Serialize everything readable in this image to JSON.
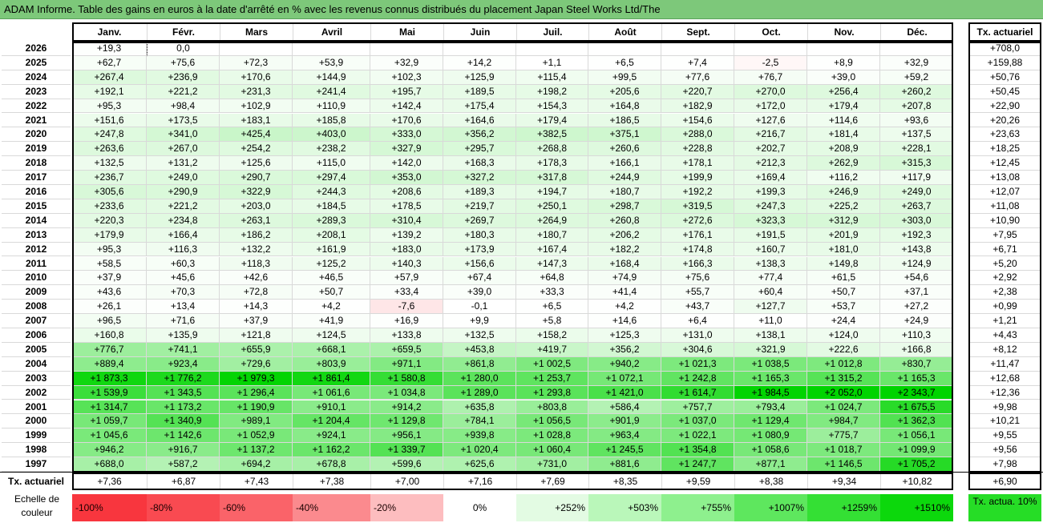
{
  "title": "ADAM Informe. Table des gains en euros à la date d'arrêté en % avec les revenus connus distribués du placement Japan Steel Works Ltd/The",
  "months": [
    "Janv.",
    "Févr.",
    "Mars",
    "Avril",
    "Mai",
    "Juin",
    "Juil.",
    "Août",
    "Sept.",
    "Oct.",
    "Nov.",
    "Déc."
  ],
  "tx_header": "Tx. actuariel",
  "rows": [
    {
      "year": "2026",
      "cells": [
        "+19,3",
        "0,0",
        "",
        "",
        "",
        "",
        "",
        "",
        "",
        "",
        "",
        ""
      ],
      "tx": "+708,0"
    },
    {
      "year": "2025",
      "cells": [
        "+62,7",
        "+75,6",
        "+72,3",
        "+53,9",
        "+32,9",
        "+14,2",
        "+1,1",
        "+6,5",
        "+7,4",
        "-2,5",
        "+8,9",
        "+32,9"
      ],
      "tx": "+159,88"
    },
    {
      "year": "2024",
      "cells": [
        "+267,4",
        "+236,9",
        "+170,6",
        "+144,9",
        "+102,3",
        "+125,9",
        "+115,4",
        "+99,5",
        "+77,6",
        "+76,7",
        "+39,0",
        "+59,2"
      ],
      "tx": "+50,76"
    },
    {
      "year": "2023",
      "cells": [
        "+192,1",
        "+221,2",
        "+231,3",
        "+241,4",
        "+195,7",
        "+189,5",
        "+198,2",
        "+205,6",
        "+220,7",
        "+270,0",
        "+256,4",
        "+260,2"
      ],
      "tx": "+50,45"
    },
    {
      "year": "2022",
      "cells": [
        "+95,3",
        "+98,4",
        "+102,9",
        "+110,9",
        "+142,4",
        "+175,4",
        "+154,3",
        "+164,8",
        "+182,9",
        "+172,0",
        "+179,4",
        "+207,8"
      ],
      "tx": "+22,90"
    },
    {
      "year": "2021",
      "cells": [
        "+151,6",
        "+173,5",
        "+183,1",
        "+185,8",
        "+170,6",
        "+164,6",
        "+179,4",
        "+186,5",
        "+154,6",
        "+127,6",
        "+114,6",
        "+93,6"
      ],
      "tx": "+20,26"
    },
    {
      "year": "2020",
      "cells": [
        "+247,8",
        "+341,0",
        "+425,4",
        "+403,0",
        "+333,0",
        "+356,2",
        "+382,5",
        "+375,1",
        "+288,0",
        "+216,7",
        "+181,4",
        "+137,5"
      ],
      "tx": "+23,63"
    },
    {
      "year": "2019",
      "cells": [
        "+263,6",
        "+267,0",
        "+254,2",
        "+238,2",
        "+327,9",
        "+295,7",
        "+268,8",
        "+260,6",
        "+228,8",
        "+202,7",
        "+208,9",
        "+228,1"
      ],
      "tx": "+18,25"
    },
    {
      "year": "2018",
      "cells": [
        "+132,5",
        "+131,2",
        "+125,6",
        "+115,0",
        "+142,0",
        "+168,3",
        "+178,3",
        "+166,1",
        "+178,1",
        "+212,3",
        "+262,9",
        "+315,3"
      ],
      "tx": "+12,45"
    },
    {
      "year": "2017",
      "cells": [
        "+236,7",
        "+249,0",
        "+290,7",
        "+297,4",
        "+353,0",
        "+327,2",
        "+317,8",
        "+244,9",
        "+199,9",
        "+169,4",
        "+116,2",
        "+117,9"
      ],
      "tx": "+13,08"
    },
    {
      "year": "2016",
      "cells": [
        "+305,6",
        "+290,9",
        "+322,9",
        "+244,3",
        "+208,6",
        "+189,3",
        "+194,7",
        "+180,7",
        "+192,2",
        "+199,3",
        "+246,9",
        "+249,0"
      ],
      "tx": "+12,07"
    },
    {
      "year": "2015",
      "cells": [
        "+233,6",
        "+221,2",
        "+203,0",
        "+184,5",
        "+178,5",
        "+219,7",
        "+250,1",
        "+298,7",
        "+319,5",
        "+247,3",
        "+225,2",
        "+263,7"
      ],
      "tx": "+11,08"
    },
    {
      "year": "2014",
      "cells": [
        "+220,3",
        "+234,8",
        "+263,1",
        "+289,3",
        "+310,4",
        "+269,7",
        "+264,9",
        "+260,8",
        "+272,6",
        "+323,3",
        "+312,9",
        "+303,0"
      ],
      "tx": "+10,90"
    },
    {
      "year": "2013",
      "cells": [
        "+179,9",
        "+166,4",
        "+186,2",
        "+208,1",
        "+139,2",
        "+180,3",
        "+180,7",
        "+206,2",
        "+176,1",
        "+191,5",
        "+201,9",
        "+192,3"
      ],
      "tx": "+7,95"
    },
    {
      "year": "2012",
      "cells": [
        "+95,3",
        "+116,3",
        "+132,2",
        "+161,9",
        "+183,0",
        "+173,9",
        "+167,4",
        "+182,2",
        "+174,8",
        "+160,7",
        "+181,0",
        "+143,8"
      ],
      "tx": "+6,71"
    },
    {
      "year": "2011",
      "cells": [
        "+58,5",
        "+60,3",
        "+118,3",
        "+125,2",
        "+140,3",
        "+156,6",
        "+147,3",
        "+168,4",
        "+166,3",
        "+138,3",
        "+149,8",
        "+124,9"
      ],
      "tx": "+5,20"
    },
    {
      "year": "2010",
      "cells": [
        "+37,9",
        "+45,6",
        "+42,6",
        "+46,5",
        "+57,9",
        "+67,4",
        "+64,8",
        "+74,9",
        "+75,6",
        "+77,4",
        "+61,5",
        "+54,6"
      ],
      "tx": "+2,92"
    },
    {
      "year": "2009",
      "cells": [
        "+43,6",
        "+70,3",
        "+72,8",
        "+50,7",
        "+33,4",
        "+39,0",
        "+33,3",
        "+41,4",
        "+55,7",
        "+60,4",
        "+50,7",
        "+37,1"
      ],
      "tx": "+2,38"
    },
    {
      "year": "2008",
      "cells": [
        "+26,1",
        "+13,4",
        "+14,3",
        "+4,2",
        "-7,6",
        "-0,1",
        "+6,5",
        "+4,2",
        "+43,7",
        "+127,7",
        "+53,7",
        "+27,2"
      ],
      "tx": "+0,99"
    },
    {
      "year": "2007",
      "cells": [
        "+96,5",
        "+71,6",
        "+37,9",
        "+41,9",
        "+16,9",
        "+9,9",
        "+5,8",
        "+14,6",
        "+6,4",
        "+11,0",
        "+24,4",
        "+24,9"
      ],
      "tx": "+1,21"
    },
    {
      "year": "2006",
      "cells": [
        "+160,8",
        "+135,9",
        "+121,8",
        "+124,5",
        "+133,8",
        "+132,5",
        "+158,2",
        "+125,3",
        "+131,0",
        "+138,1",
        "+124,0",
        "+110,3"
      ],
      "tx": "+4,43"
    },
    {
      "year": "2005",
      "cells": [
        "+776,7",
        "+741,1",
        "+655,9",
        "+668,1",
        "+659,5",
        "+453,8",
        "+419,7",
        "+356,2",
        "+304,6",
        "+321,9",
        "+222,6",
        "+166,8"
      ],
      "tx": "+8,12"
    },
    {
      "year": "2004",
      "cells": [
        "+889,4",
        "+923,4",
        "+729,6",
        "+803,9",
        "+971,1",
        "+861,8",
        "+1 002,5",
        "+940,2",
        "+1 021,3",
        "+1 038,5",
        "+1 012,8",
        "+830,7"
      ],
      "tx": "+11,47"
    },
    {
      "year": "2003",
      "cells": [
        "+1 873,3",
        "+1 776,2",
        "+1 979,3",
        "+1 861,4",
        "+1 580,8",
        "+1 280,0",
        "+1 253,7",
        "+1 072,1",
        "+1 242,8",
        "+1 165,3",
        "+1 315,2",
        "+1 165,3"
      ],
      "tx": "+12,68"
    },
    {
      "year": "2002",
      "cells": [
        "+1 539,9",
        "+1 343,5",
        "+1 296,4",
        "+1 061,6",
        "+1 034,8",
        "+1 289,0",
        "+1 293,8",
        "+1 421,0",
        "+1 614,7",
        "+1 984,5",
        "+2 052,0",
        "+2 343,7"
      ],
      "tx": "+12,36"
    },
    {
      "year": "2001",
      "cells": [
        "+1 314,7",
        "+1 173,2",
        "+1 190,9",
        "+910,1",
        "+914,2",
        "+635,8",
        "+803,8",
        "+586,4",
        "+757,7",
        "+793,4",
        "+1 024,7",
        "+1 675,5"
      ],
      "tx": "+9,98"
    },
    {
      "year": "2000",
      "cells": [
        "+1 059,7",
        "+1 340,9",
        "+989,1",
        "+1 204,4",
        "+1 129,8",
        "+784,1",
        "+1 056,5",
        "+901,9",
        "+1 037,0",
        "+1 129,4",
        "+984,7",
        "+1 362,3"
      ],
      "tx": "+10,21"
    },
    {
      "year": "1999",
      "cells": [
        "+1 045,6",
        "+1 142,6",
        "+1 052,9",
        "+924,1",
        "+956,1",
        "+939,8",
        "+1 028,8",
        "+963,4",
        "+1 022,1",
        "+1 080,9",
        "+775,7",
        "+1 056,1"
      ],
      "tx": "+9,55"
    },
    {
      "year": "1998",
      "cells": [
        "+946,2",
        "+916,7",
        "+1 137,2",
        "+1 162,2",
        "+1 339,7",
        "+1 020,4",
        "+1 060,4",
        "+1 245,5",
        "+1 354,8",
        "+1 058,6",
        "+1 018,7",
        "+1 099,9"
      ],
      "tx": "+9,56"
    },
    {
      "year": "1997",
      "cells": [
        "+688,0",
        "+587,2",
        "+694,2",
        "+678,8",
        "+599,6",
        "+625,6",
        "+731,0",
        "+881,6",
        "+1 247,7",
        "+877,1",
        "+1 146,5",
        "+1 705,2"
      ],
      "tx": "+7,98"
    }
  ],
  "footer": {
    "label": "Tx. actuariel",
    "cells": [
      "+7,36",
      "+6,87",
      "+7,43",
      "+7,38",
      "+7,00",
      "+7,16",
      "+7,69",
      "+8,35",
      "+9,59",
      "+8,38",
      "+9,34",
      "+10,82"
    ],
    "tx": "+6,90"
  },
  "legend": {
    "label": "Echelle de couleur",
    "items": [
      {
        "text": "-100%",
        "color": "#f8363e"
      },
      {
        "text": "-80%",
        "color": "#f94a51"
      },
      {
        "text": "-60%",
        "color": "#fa6369"
      },
      {
        "text": "-40%",
        "color": "#fb8a8e"
      },
      {
        "text": "-20%",
        "color": "#fdbdbf"
      },
      {
        "text": "0%",
        "color": "#ffffff"
      },
      {
        "text": "+252%",
        "color": "#e3fbe3"
      },
      {
        "text": "+503%",
        "color": "#baf7ba"
      },
      {
        "text": "+755%",
        "color": "#8ef08e"
      },
      {
        "text": "+1007%",
        "color": "#5ee75e"
      },
      {
        "text": "+1259%",
        "color": "#34e034"
      },
      {
        "text": "+1510%",
        "color": "#0cd80c"
      }
    ],
    "tx_label": "Tx. actua. 10%",
    "tx_color": "#26dd26"
  },
  "colors": {
    "title_bar": "#7dc87a",
    "grid_line": "#d9d9d9"
  }
}
